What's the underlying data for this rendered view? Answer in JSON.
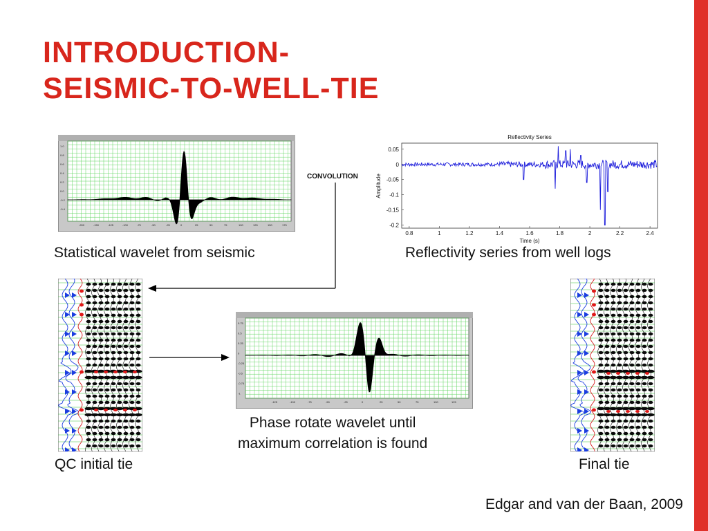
{
  "slide": {
    "title_line1": "INTRODUCTION-",
    "title_line2": "SEISMIC-TO-WELL-TIE",
    "accent_color": "#e0302a",
    "title_color": "#d8261c"
  },
  "labels": {
    "convolution": "CONVOLUTION",
    "statistical_wavelet": "Statistical wavelet from seismic",
    "reflectivity": "Reflectivity series from well logs",
    "phase_rotate_line1": "Phase rotate wavelet until",
    "phase_rotate_line2": "maximum correlation is found",
    "qc_initial": "QC initial tie",
    "final_tie": "Final tie",
    "credit": "Edgar and van der Baan, 2009"
  },
  "chart_data": [
    {
      "type": "line",
      "title": "Reflectivity Series",
      "xlabel": "Time (s)",
      "ylabel": "Amplitude",
      "xlim": [
        0.75,
        2.45
      ],
      "ylim": [
        -0.21,
        0.07
      ],
      "xticks": [
        "0.8",
        "1",
        "1.2",
        "1.4",
        "1.6",
        "1.8",
        "2",
        "2.2",
        "2.4"
      ],
      "yticks": [
        "0.05",
        "0",
        "-0.05",
        "-0.1",
        "-0.15",
        "-0.2"
      ],
      "color": "#1a1adb",
      "grid": false
    }
  ]
}
